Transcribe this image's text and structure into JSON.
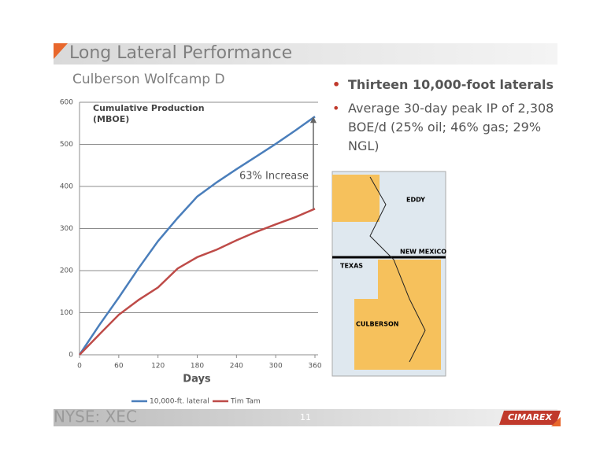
{
  "slide": {
    "title": "Long Lateral Performance",
    "subtitle": "Culberson Wolfcamp D",
    "bullets": [
      "Thirteen 10,000-foot laterals",
      "Average 30-day peak IP of 2,308 BOE/d (25% oil; 46% gas; 29% NGL)"
    ],
    "map_labels": [
      "EDDY",
      "NEW MEXICO",
      "TEXAS",
      "CULBERSON"
    ],
    "ticker": "NYSE: XEC",
    "page": "11",
    "logo": "CIMAREX"
  },
  "chart_data": {
    "type": "line",
    "y_label": "Cumulative Production (MBOE)",
    "x_label": "Days",
    "annotation": "63% Increase",
    "x": [
      0,
      30,
      60,
      90,
      120,
      150,
      180,
      210,
      240,
      270,
      300,
      330,
      360
    ],
    "series": [
      {
        "name": "10,000-ft. lateral",
        "color": "#4a7ebb",
        "values": [
          0,
          70,
          136,
          205,
          270,
          325,
          376,
          410,
          441,
          471,
          501,
          533,
          566
        ]
      },
      {
        "name": "Tim Tam",
        "color": "#be4b48",
        "values": [
          0,
          48,
          95,
          130,
          160,
          205,
          232,
          250,
          272,
          292,
          310,
          327,
          347
        ]
      }
    ],
    "xlim": [
      0,
      360
    ],
    "xticks": [
      0,
      60,
      120,
      180,
      240,
      300,
      360
    ],
    "ylim": [
      0,
      600
    ],
    "yticks": [
      0,
      100,
      200,
      300,
      400,
      500,
      600
    ],
    "grid": true
  }
}
